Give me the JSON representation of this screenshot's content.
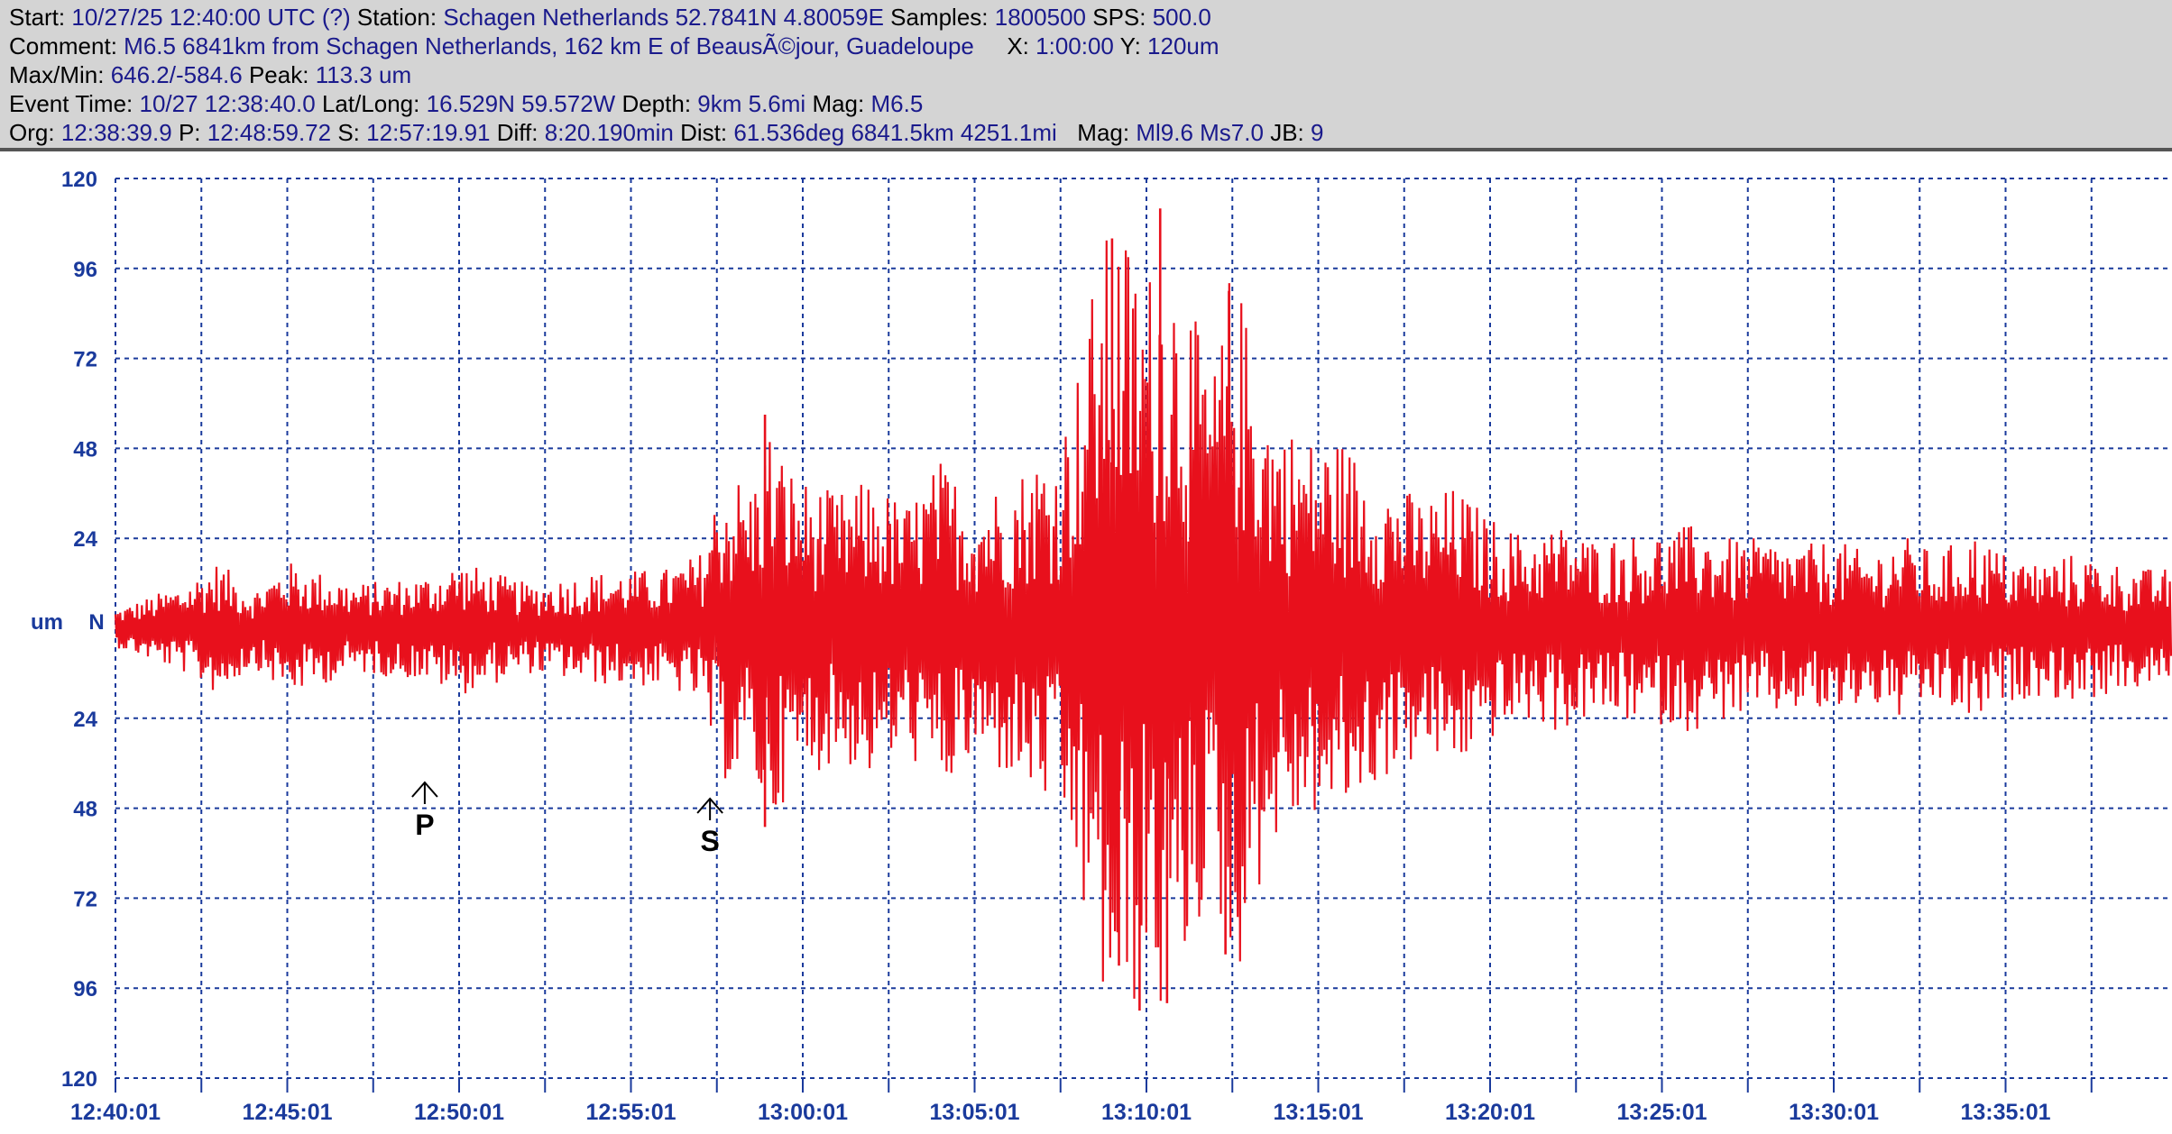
{
  "header": {
    "line1": {
      "start_label": "Start:",
      "start_value": "10/27/25 12:40:00 UTC (?)",
      "station_label": "Station:",
      "station_value": "Schagen Netherlands 52.7841N 4.80059E",
      "samples_label": "Samples:",
      "samples_value": "1800500",
      "sps_label": "SPS:",
      "sps_value": "500.0"
    },
    "line2": {
      "comment_label": "Comment:",
      "comment_value": "M6.5 6841km from Schagen Netherlands, 162 km E of BeausÃ©jour, Guadeloupe",
      "x_label": "X:",
      "x_value": "1:00:00",
      "y_label": "Y:",
      "y_value": "120um"
    },
    "line3": {
      "maxmin_label": "Max/Min:",
      "maxmin_value": "646.2/-584.6",
      "peak_label": "Peak:",
      "peak_value": "113.3 um"
    },
    "line4": {
      "event_label": "Event Time:",
      "event_value": "10/27 12:38:40.0",
      "latlong_label": "Lat/Long:",
      "latlong_value": "16.529N 59.572W",
      "depth_label": "Depth:",
      "depth_value": "9km 5.6mi",
      "mag_label": "Mag:",
      "mag_value": "M6.5"
    },
    "line5": {
      "org_label": "Org:",
      "org_value": "12:38:39.9",
      "p_label": "P:",
      "p_value": "12:48:59.72",
      "s_label": "S:",
      "s_value": "12:57:19.91",
      "diff_label": "Diff:",
      "diff_value": "8:20.190min",
      "dist_label": "Dist:",
      "dist_value": "61.536deg 6841.5km 4251.1mi",
      "mag_label": "Mag:",
      "mag_value": "Ml9.6 Ms7.0",
      "jb_label": "JB:",
      "jb_value": "9"
    }
  },
  "colors": {
    "trace": "#e8101c",
    "grid": "#1a3a9c",
    "axis_text": "#1a3a9c",
    "header_bg": "#d4d4d4",
    "header_value": "#1a1a8c",
    "marker": "#000000"
  },
  "chart_data": {
    "type": "line",
    "title": "",
    "xlabel": "",
    "ylabel": "um",
    "channel": "N",
    "grid": true,
    "y_tick_labels": [
      "120",
      "96",
      "72",
      "48",
      "24",
      "24",
      "48",
      "72",
      "96",
      "120"
    ],
    "y_ticks": [
      120,
      96,
      72,
      48,
      24,
      -24,
      -48,
      -72,
      -96,
      -120
    ],
    "ylim": [
      -120,
      120
    ],
    "x_tick_labels": [
      "12:40:01",
      "12:45:01",
      "12:50:01",
      "12:55:01",
      "13:00:01",
      "13:05:01",
      "13:10:01",
      "13:15:01",
      "13:20:01",
      "13:25:01",
      "13:30:01",
      "13:35:01"
    ],
    "x_tick_minutes": [
      0,
      5,
      10,
      15,
      20,
      25,
      30,
      35,
      40,
      45,
      50,
      55
    ],
    "xlim_minutes": [
      0,
      60
    ],
    "markers": [
      {
        "label": "P",
        "minute": 9.0
      },
      {
        "label": "S",
        "minute": 17.3
      }
    ],
    "series": [
      {
        "envelope": {
          "minute": [
            0,
            2,
            3,
            4,
            5,
            7,
            9,
            10,
            12,
            14,
            16,
            17,
            17.6,
            18,
            18.5,
            19,
            19.5,
            20,
            21,
            22,
            23,
            24,
            25,
            26,
            27,
            27.3,
            28,
            28.5,
            29,
            29.5,
            30,
            30.5,
            31,
            31.5,
            32,
            32.5,
            33,
            33.5,
            34,
            35,
            35.5,
            36,
            37,
            38,
            39,
            40,
            41,
            42,
            43,
            44,
            45,
            46,
            47,
            48,
            49,
            50,
            51,
            52,
            53,
            54,
            55,
            56,
            57,
            58,
            59,
            60
          ],
          "amplitude": [
            5,
            12,
            18,
            10,
            18,
            12,
            14,
            18,
            12,
            15,
            16,
            20,
            40,
            42,
            38,
            55,
            45,
            40,
            36,
            40,
            33,
            45,
            36,
            40,
            48,
            45,
            70,
            95,
            110,
            105,
            95,
            108,
            95,
            80,
            70,
            100,
            80,
            62,
            55,
            50,
            52,
            48,
            40,
            35,
            38,
            30,
            25,
            28,
            24,
            25,
            26,
            28,
            24,
            24,
            22,
            24,
            20,
            25,
            20,
            26,
            20,
            18,
            20,
            18,
            16,
            16
          ]
        },
        "peak_spikes": [
          {
            "minute": 29.0,
            "value": 104
          },
          {
            "minute": 29.2,
            "value": -90
          },
          {
            "minute": 30.4,
            "value": 112
          },
          {
            "minute": 30.6,
            "value": -100
          },
          {
            "minute": 29.8,
            "value": -102
          },
          {
            "minute": 32.4,
            "value": 90
          },
          {
            "minute": 32.3,
            "value": -87
          },
          {
            "minute": 18.9,
            "value": 57
          },
          {
            "minute": 18.9,
            "value": -53
          }
        ]
      }
    ]
  }
}
